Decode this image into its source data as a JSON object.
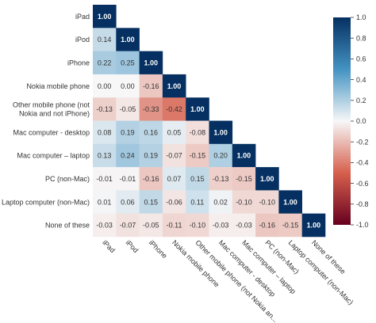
{
  "chart_data": {
    "type": "heatmap",
    "layout": "lower-triangle",
    "labels": [
      "iPad",
      "iPod",
      "iPhone",
      "Nokia mobile phone",
      "Other mobile phone (not Nokia and not iPhone)",
      "Mac computer - desktop",
      "Mac computer – laptop",
      "PC (non-Mac)",
      "Laptop computer (non-Mac)",
      "None of these"
    ],
    "row_labels": [
      [
        "iPad"
      ],
      [
        "iPod"
      ],
      [
        "iPhone"
      ],
      [
        "Nokia mobile phone"
      ],
      [
        "Other mobile phone (not",
        "Nokia and not iPhone)"
      ],
      [
        "Mac computer - desktop"
      ],
      [
        "Mac computer – laptop"
      ],
      [
        "PC (non-Mac)"
      ],
      [
        "Laptop computer (non-Mac)"
      ],
      [
        "None of these"
      ]
    ],
    "column_labels": [
      "iPad",
      "iPod",
      "iPhone",
      "Nokia mobile phone",
      "Other mobile phone (not Nokia an...",
      "Mac computer - desktop",
      "Mac computer – laptop",
      "PC (non-Mac)",
      "Laptop computer (non-Mac)",
      "None of these"
    ],
    "values": [
      [
        1.0
      ],
      [
        0.14,
        1.0
      ],
      [
        0.22,
        0.25,
        1.0
      ],
      [
        0.0,
        0.0,
        -0.16,
        1.0
      ],
      [
        -0.13,
        -0.05,
        -0.33,
        -0.42,
        1.0
      ],
      [
        0.08,
        0.19,
        0.16,
        0.05,
        -0.08,
        1.0
      ],
      [
        0.13,
        0.24,
        0.19,
        -0.07,
        -0.15,
        0.2,
        1.0
      ],
      [
        -0.01,
        -0.01,
        -0.16,
        0.07,
        0.15,
        -0.13,
        -0.15,
        1.0
      ],
      [
        0.01,
        0.06,
        0.15,
        -0.06,
        0.11,
        0.02,
        -0.1,
        -0.1,
        1.0
      ],
      [
        -0.03,
        -0.07,
        -0.05,
        -0.11,
        -0.1,
        -0.03,
        -0.03,
        -0.16,
        -0.15,
        1.0
      ]
    ],
    "value_format": "2 decimals",
    "colorscale": {
      "name": "red-white-blue diverging",
      "min": -1.0,
      "max": 1.0,
      "stops": [
        "#67001f",
        "#d6604d",
        "#f7f7f7",
        "#4393c3",
        "#053061"
      ],
      "ticks": [
        "1.0",
        "0.8",
        "0.6",
        "0.4",
        "0.2",
        "0.0",
        "-0.2",
        "-0.4",
        "-0.6",
        "-0.8",
        "-1.0"
      ]
    },
    "text_colors": {
      "dark": "#333333",
      "light": "#ffffff"
    },
    "title": "",
    "xlabel": "",
    "ylabel": ""
  }
}
